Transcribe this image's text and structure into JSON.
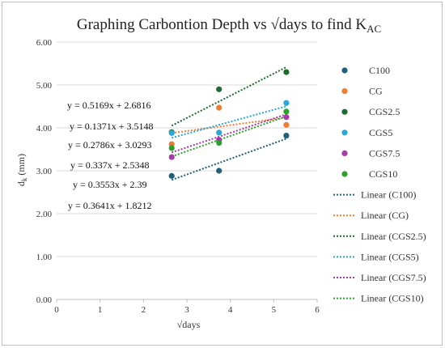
{
  "chart_data": {
    "type": "scatter",
    "title": "Graphing Carbontion Depth vs √days to find K",
    "title_subscript": "AC",
    "xlabel": "√days",
    "ylabel": "d",
    "ylabel_subscript": "k",
    "ylabel_unit": " (mm)",
    "xlim": [
      0,
      6
    ],
    "ylim": [
      0,
      6
    ],
    "x_ticks": [
      "0",
      "1",
      "2",
      "3",
      "4",
      "5",
      "6"
    ],
    "y_ticks": [
      "0.00",
      "1.00",
      "2.00",
      "3.00",
      "4.00",
      "5.00",
      "6.00"
    ],
    "grid": "horizontal",
    "legend_position": "right",
    "series": [
      {
        "name": "C100",
        "color": "#1f5f7a",
        "x": [
          2.65,
          3.74,
          5.29
        ],
        "y": [
          2.88,
          3.0,
          3.82
        ],
        "trend_label": "Linear (C100)",
        "slope": 0.3641,
        "intercept": 1.8212,
        "equation": "y = 0.3641x + 1.8212"
      },
      {
        "name": "CG",
        "color": "#ed7d31",
        "x": [
          2.65,
          3.74,
          5.29
        ],
        "y": [
          3.62,
          4.47,
          4.07
        ],
        "trend_label": "Linear (CG)",
        "slope": 0.1371,
        "intercept": 3.5148,
        "equation": "y = 0.1371x + 3.5148"
      },
      {
        "name": "CGS2.5",
        "color": "#1e6b2e",
        "x": [
          2.65,
          3.74,
          5.29
        ],
        "y": [
          3.9,
          4.9,
          5.3
        ],
        "trend_label": "Linear (CGS2.5)",
        "slope": 0.5169,
        "intercept": 2.6816,
        "equation": "y = 0.5169x + 2.6816"
      },
      {
        "name": "CGS5",
        "color": "#29a8d8",
        "x": [
          2.65,
          3.74,
          5.29
        ],
        "y": [
          3.88,
          3.89,
          4.58
        ],
        "trend_label": "Linear (CGS5)",
        "slope": 0.2786,
        "intercept": 3.0293,
        "equation": "y = 0.2786x + 3.0293"
      },
      {
        "name": "CGS7.5",
        "color": "#a63ba6",
        "x": [
          2.65,
          3.74,
          5.29
        ],
        "y": [
          3.32,
          3.72,
          4.25
        ],
        "trend_label": "Linear (CGS7.5)",
        "slope": 0.337,
        "intercept": 2.5348,
        "equation": "y = 0.337x + 2.5348"
      },
      {
        "name": "CGS10",
        "color": "#2ca02c",
        "x": [
          2.65,
          3.74,
          5.29
        ],
        "y": [
          3.53,
          3.65,
          4.38
        ],
        "trend_label": "Linear (CGS10)",
        "slope": 0.3553,
        "intercept": 2.39,
        "equation": "y = 0.3553x + 2.39"
      }
    ],
    "equations_order": [
      "y = 0.5169x + 2.6816",
      "y = 0.1371x + 3.5148",
      "y = 0.2786x + 3.0293",
      "y = 0.337x + 2.5348",
      "y = 0.3553x + 2.39",
      "y = 0.3641x + 1.8212"
    ]
  }
}
